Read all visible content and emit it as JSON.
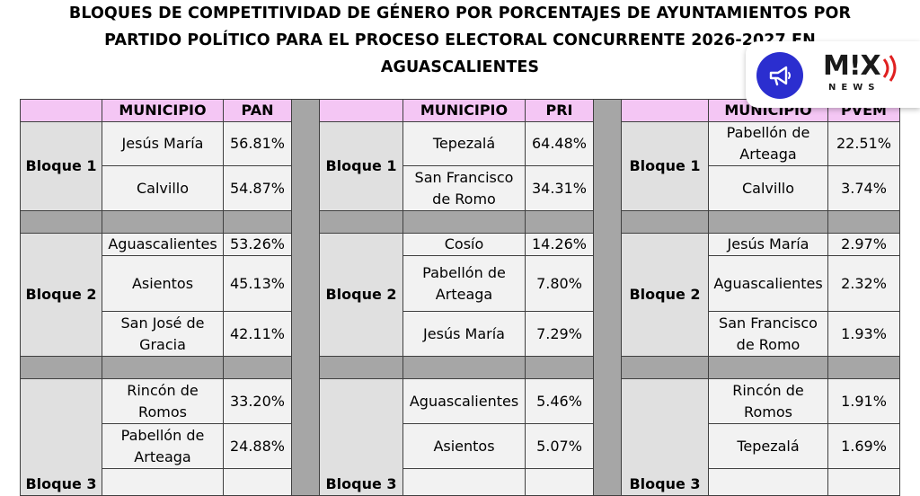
{
  "title": {
    "line1": "BLOQUES DE COMPETITIVIDAD DE GÉNERO POR PORCENTAJES DE AYUNTAMIENTOS POR",
    "line2": "PARTIDO POLÍTICO PARA EL PROCESO ELECTORAL CONCURRENTE 2026-2027 EN",
    "line3": "AGUASCALIENTES"
  },
  "logo": {
    "icon": "megaphone-icon",
    "brand": "M!X",
    "sub": "NEWS",
    "accent": "#2b2ecf",
    "wave_color": "#e02020"
  },
  "headers": {
    "pan": {
      "municipio": "MUNICIPIO",
      "party": "PAN"
    },
    "pri": {
      "municipio": "MUNICIPIO",
      "party": "PRI"
    },
    "pvem": {
      "municipio": "MUNICIPIO",
      "party": "PVEM"
    }
  },
  "blocks": {
    "b1": "Bloque 1",
    "b2": "Bloque 2",
    "b3": "Bloque 3"
  },
  "pan": [
    {
      "municipio": "Jesús María",
      "pct": "56.81%"
    },
    {
      "municipio": "Calvillo",
      "pct": "54.87%"
    },
    {
      "municipio": "Aguascalientes",
      "pct": "53.26%"
    },
    {
      "municipio": "Asientos",
      "pct": "45.13%"
    },
    {
      "municipio": "San José de Gracia",
      "pct": "42.11%"
    },
    {
      "municipio": "Rincón de Romos",
      "pct": "33.20%"
    },
    {
      "municipio": "Pabellón de Arteaga",
      "pct": "24.88%"
    }
  ],
  "pri": [
    {
      "municipio": "Tepezalá",
      "pct": "64.48%"
    },
    {
      "municipio": "San Francisco de Romo",
      "pct": "34.31%"
    },
    {
      "municipio": "Cosío",
      "pct": "14.26%"
    },
    {
      "municipio": "Pabellón de Arteaga",
      "pct": "7.80%"
    },
    {
      "municipio": "Jesús María",
      "pct": "7.29%"
    },
    {
      "municipio": "Aguascalientes",
      "pct": "5.46%"
    },
    {
      "municipio": "Asientos",
      "pct": "5.07%"
    }
  ],
  "pvem": [
    {
      "municipio": "Pabellón de Arteaga",
      "pct": "22.51%"
    },
    {
      "municipio": "Calvillo",
      "pct": "3.74%"
    },
    {
      "municipio": "Jesús María",
      "pct": "2.97%"
    },
    {
      "municipio": "Aguascalientes",
      "pct": "2.32%"
    },
    {
      "municipio": "San Francisco de Romo",
      "pct": "1.93%"
    },
    {
      "municipio": "Rincón de Romos",
      "pct": "1.91%"
    },
    {
      "municipio": "Tepezalá",
      "pct": "1.69%"
    }
  ]
}
